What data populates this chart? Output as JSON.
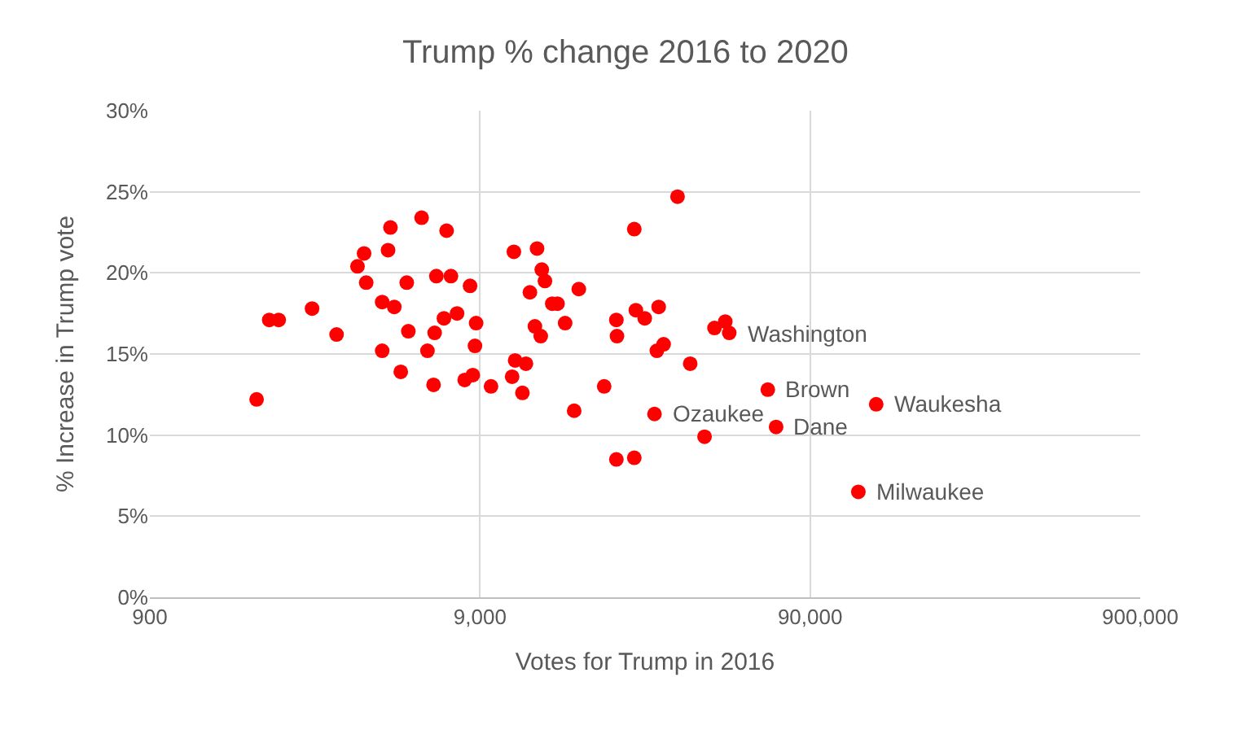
{
  "chart_data": {
    "type": "scatter",
    "title": "Trump % change 2016 to 2020",
    "xlabel": "Votes for Trump in 2016",
    "ylabel": "% Increase in Trump vote",
    "log": "x",
    "grid": true,
    "xlim": [
      900,
      900000
    ],
    "xticks": [
      {
        "value": 900,
        "label": "900"
      },
      {
        "value": 9000,
        "label": "9,000"
      },
      {
        "value": 90000,
        "label": "90,000"
      },
      {
        "value": 900000,
        "label": "900,000"
      }
    ],
    "ylim": [
      0,
      30
    ],
    "yticks": [
      {
        "value": 0,
        "label": "0%"
      },
      {
        "value": 5,
        "label": "5%"
      },
      {
        "value": 10,
        "label": "10%"
      },
      {
        "value": 15,
        "label": "15%"
      },
      {
        "value": 20,
        "label": "20%"
      },
      {
        "value": 25,
        "label": "25%"
      },
      {
        "value": 30,
        "label": "30%"
      }
    ],
    "series": [
      {
        "color": "#ff0000",
        "x": [
          1895,
          2070,
          2210,
          2790,
          3310,
          3830,
          4010,
          4070,
          4550,
          4550,
          4740,
          4820,
          4950,
          5180,
          5400,
          5460,
          5990,
          6240,
          6510,
          6560,
          6640,
          7000,
          7130,
          7350,
          7670,
          8090,
          8400,
          8560,
          8690,
          8760,
          9720,
          11260,
          11400,
          11500,
          12100,
          12400,
          12750,
          13200,
          13400,
          13750,
          13850,
          14160,
          14900,
          15450,
          16300,
          17360,
          17930,
          21400,
          23300,
          23300,
          23400,
          26400,
          26400,
          26700,
          28400,
          30400,
          30900,
          31300,
          32400,
          35700,
          39000,
          43100,
          46200,
          49800,
          51200,
          67000,
          71000,
          126000,
          142700
        ],
        "values": [
          12.2,
          17.1,
          17.1,
          17.8,
          16.2,
          20.4,
          21.2,
          19.4,
          18.2,
          15.2,
          21.4,
          22.8,
          17.9,
          13.9,
          19.4,
          16.4,
          23.4,
          15.2,
          13.1,
          16.3,
          19.8,
          17.2,
          22.6,
          19.8,
          17.5,
          13.4,
          19.2,
          13.7,
          15.5,
          16.9,
          13.0,
          13.6,
          21.3,
          14.6,
          12.6,
          14.4,
          18.8,
          16.7,
          21.5,
          16.1,
          20.2,
          19.5,
          18.1,
          18.1,
          16.9,
          11.5,
          19.0,
          13.0,
          17.1,
          8.5,
          16.1,
          22.7,
          8.6,
          17.7,
          17.2,
          11.3,
          15.2,
          17.9,
          15.6,
          24.7,
          14.4,
          9.9,
          16.6,
          17.0,
          16.3,
          12.8,
          10.5,
          6.5,
          11.9
        ]
      }
    ],
    "annotations": [
      {
        "text": "Washington",
        "x": 51200,
        "y": 16.3
      },
      {
        "text": "Brown",
        "x": 67000,
        "y": 12.8
      },
      {
        "text": "Waukesha",
        "x": 142700,
        "y": 11.9
      },
      {
        "text": "Ozaukee",
        "x": 30400,
        "y": 11.3
      },
      {
        "text": "Dane",
        "x": 71000,
        "y": 10.5
      },
      {
        "text": "Milwaukee",
        "x": 126000,
        "y": 6.5
      }
    ]
  }
}
